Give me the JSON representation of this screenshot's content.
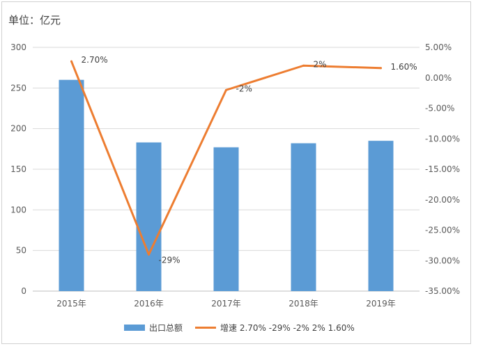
{
  "unit_label": "单位：亿元",
  "chart_data": {
    "type": "bar",
    "categories": [
      "2015年",
      "2016年",
      "2017年",
      "2018年",
      "2019年"
    ],
    "series": [
      {
        "name": "出口总额",
        "type": "bar",
        "axis": "left",
        "values": [
          260,
          183,
          177,
          182,
          185
        ],
        "color": "#5B9BD5"
      },
      {
        "name": "增速 2.70% -29% -2% 2% 1.60%",
        "type": "line",
        "axis": "right",
        "values": [
          2.7,
          -29,
          -2,
          2,
          1.6
        ],
        "labels": [
          "2.70%",
          "-29%",
          "-2%",
          "2%",
          "1.60%"
        ],
        "color": "#ED7D31"
      }
    ],
    "y_left": {
      "min": 0,
      "max": 300,
      "ticks": [
        0,
        50,
        100,
        150,
        200,
        250,
        300
      ]
    },
    "y_right": {
      "min": -35,
      "max": 5,
      "ticks": [
        "5.00%",
        "0.00%",
        "-5.00%",
        "-10.00%",
        "-15.00%",
        "-20.00%",
        "-25.00%",
        "-30.00%",
        "-35.00%"
      ],
      "tick_values": [
        5,
        0,
        -5,
        -10,
        -15,
        -20,
        -25,
        -30,
        -35
      ]
    },
    "grid": true,
    "legend_position": "bottom"
  }
}
